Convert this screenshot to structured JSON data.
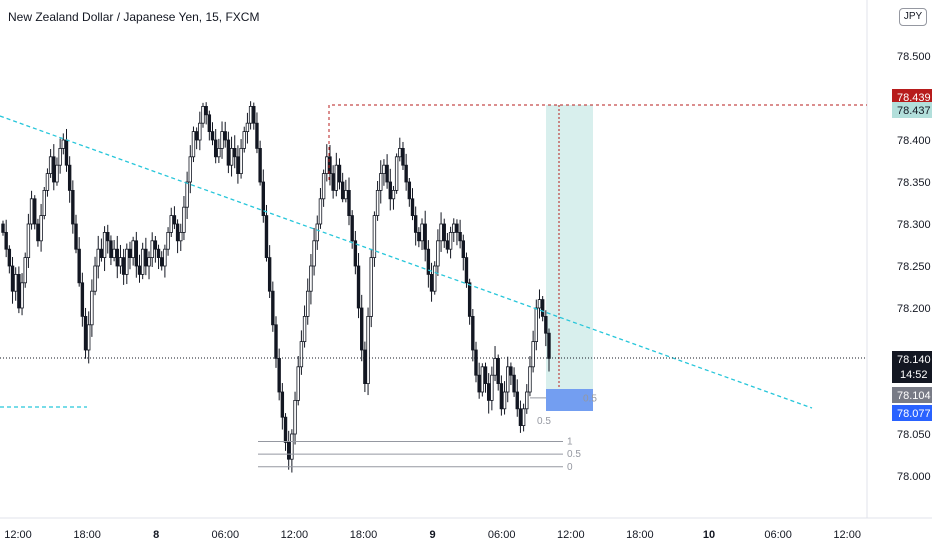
{
  "header": {
    "title": "New Zealand Dollar / Japanese Yen, 15, FXCM",
    "currency_badge": "JPY"
  },
  "colors": {
    "candle": "#131722",
    "trendline": "#26c6da",
    "stop_line": "#b71c1c",
    "take_profit_zone": "#b2dfdb",
    "stop_zone": "#5b8def",
    "fib_line": "#9598a1",
    "current_price_tag": "#131722",
    "red_tag": "#b71c1c",
    "teal_tag": "#b2dfdb",
    "gray_tag": "#787b86",
    "blue_tag": "#2962ff"
  },
  "chart_data": {
    "type": "candlestick",
    "timeframe": "15",
    "symbol": "NZDJPY",
    "exchange": "FXCM",
    "title": "New Zealand Dollar / Japanese Yen, 15, FXCM",
    "y_range": [
      77.98,
      78.54
    ],
    "y_ticks": [
      "78.500",
      "78.400",
      "78.350",
      "78.300",
      "78.250",
      "78.200",
      "78.050",
      "78.000"
    ],
    "x_ticks": [
      {
        "label": "12:00",
        "day": false
      },
      {
        "label": "18:00",
        "day": false
      },
      {
        "label": "8",
        "day": true
      },
      {
        "label": "06:00",
        "day": false
      },
      {
        "label": "12:00",
        "day": false
      },
      {
        "label": "18:00",
        "day": false
      },
      {
        "label": "9",
        "day": true
      },
      {
        "label": "06:00",
        "day": false
      },
      {
        "label": "12:00",
        "day": false
      },
      {
        "label": "18:00",
        "day": false
      },
      {
        "label": "10",
        "day": true
      },
      {
        "label": "06:00",
        "day": false
      },
      {
        "label": "12:00",
        "day": false
      }
    ],
    "price_tags": [
      {
        "label": "78.439",
        "value": 78.439,
        "kind": "red"
      },
      {
        "label": "78.437",
        "value": 78.437,
        "kind": "teal"
      },
      {
        "label": "78.140",
        "value": 78.14,
        "kind": "current",
        "countdown": "14:52"
      },
      {
        "label": "78.104",
        "value": 78.104,
        "kind": "gray"
      },
      {
        "label": "78.077",
        "value": 78.077,
        "kind": "blue"
      }
    ],
    "current_price": 78.14,
    "stop_level": 78.439,
    "take_profit": 78.437,
    "entry": 78.104,
    "stop_zone_low": 78.077,
    "fib_levels": [
      {
        "label": "1",
        "value": 78.041
      },
      {
        "label": "0.5",
        "value": 78.026
      },
      {
        "label": "0",
        "value": 78.011
      }
    ],
    "fib_levels_small": [
      {
        "label": "0.5",
        "value": 78.093
      }
    ],
    "position_label": "0.5",
    "candle_closes": [
      78.29,
      78.27,
      78.25,
      78.22,
      78.24,
      78.2,
      78.23,
      78.26,
      78.3,
      78.33,
      78.3,
      78.28,
      78.31,
      78.34,
      78.36,
      78.38,
      78.35,
      78.37,
      78.39,
      78.4,
      78.37,
      78.34,
      78.3,
      78.27,
      78.23,
      78.19,
      78.15,
      78.18,
      78.22,
      78.25,
      78.27,
      78.26,
      78.29,
      78.28,
      78.26,
      78.27,
      78.25,
      78.26,
      78.24,
      78.27,
      78.26,
      78.28,
      78.25,
      78.24,
      78.27,
      78.25,
      78.26,
      78.28,
      78.27,
      78.26,
      78.25,
      78.27,
      78.29,
      78.31,
      78.3,
      78.28,
      78.29,
      78.32,
      78.35,
      78.38,
      78.41,
      78.4,
      78.42,
      78.44,
      78.43,
      78.41,
      78.4,
      78.38,
      78.39,
      78.41,
      78.4,
      78.37,
      78.39,
      78.38,
      78.36,
      78.39,
      78.41,
      78.42,
      78.44,
      78.42,
      78.39,
      78.35,
      78.31,
      78.26,
      78.22,
      78.18,
      78.14,
      78.1,
      78.07,
      78.04,
      78.02,
      78.05,
      78.09,
      78.13,
      78.16,
      78.19,
      78.22,
      78.25,
      78.28,
      78.3,
      78.33,
      78.36,
      78.38,
      78.36,
      78.34,
      78.37,
      78.35,
      78.33,
      78.34,
      78.31,
      78.28,
      78.25,
      78.2,
      78.15,
      78.11,
      78.19,
      78.26,
      78.31,
      78.34,
      78.36,
      78.37,
      78.35,
      78.33,
      78.34,
      78.38,
      78.39,
      78.37,
      78.35,
      78.33,
      78.31,
      78.29,
      78.28,
      78.3,
      78.27,
      78.24,
      78.22,
      78.25,
      78.28,
      78.3,
      78.28,
      78.27,
      78.29,
      78.3,
      78.29,
      78.28,
      78.26,
      78.23,
      78.19,
      78.15,
      78.12,
      78.1,
      78.13,
      78.11,
      78.09,
      78.12,
      78.14,
      78.11,
      78.08,
      78.1,
      78.13,
      78.12,
      78.1,
      78.08,
      78.06,
      78.08,
      78.1,
      78.13,
      78.16,
      78.2,
      78.21,
      78.19,
      78.17,
      78.14
    ]
  }
}
